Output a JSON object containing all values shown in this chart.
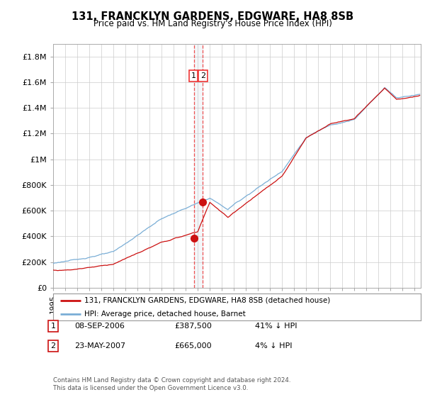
{
  "title": "131, FRANCKLYN GARDENS, EDGWARE, HA8 8SB",
  "subtitle": "Price paid vs. HM Land Registry's House Price Index (HPI)",
  "ylabel_ticks": [
    "£0",
    "£200K",
    "£400K",
    "£600K",
    "£800K",
    "£1M",
    "£1.2M",
    "£1.4M",
    "£1.6M",
    "£1.8M"
  ],
  "ytick_values": [
    0,
    200000,
    400000,
    600000,
    800000,
    1000000,
    1200000,
    1400000,
    1600000,
    1800000
  ],
  "ylim": [
    0,
    1900000
  ],
  "xlim_start": 1995.0,
  "xlim_end": 2025.5,
  "transaction1": {
    "date_decimal": 2006.69,
    "price": 387500,
    "label": "1"
  },
  "transaction2": {
    "date_decimal": 2007.39,
    "price": 665000,
    "label": "2"
  },
  "vline1_x": 2006.69,
  "vline2_x": 2007.39,
  "legend_line1": "131, FRANCKLYN GARDENS, EDGWARE, HA8 8SB (detached house)",
  "legend_line2": "HPI: Average price, detached house, Barnet",
  "table_rows": [
    {
      "num": "1",
      "date": "08-SEP-2006",
      "price": "£387,500",
      "change": "41% ↓ HPI"
    },
    {
      "num": "2",
      "date": "23-MAY-2007",
      "price": "£665,000",
      "change": "4% ↓ HPI"
    }
  ],
  "footer": "Contains HM Land Registry data © Crown copyright and database right 2024.\nThis data is licensed under the Open Government Licence v3.0.",
  "hpi_color": "#7aaed6",
  "price_color": "#cc1111",
  "vline_red_color": "#ee3333",
  "vline_blue_color": "#bbccdd",
  "label_box_color": "#ee3333",
  "background_color": "#ffffff",
  "grid_color": "#cccccc"
}
